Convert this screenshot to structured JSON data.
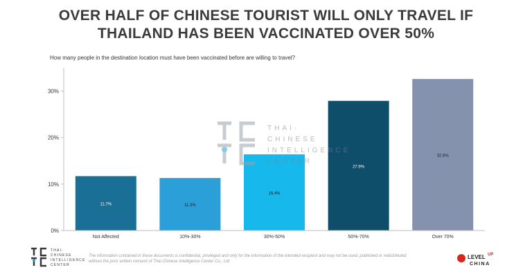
{
  "title_line1": "OVER HALF OF CHINESE TOURIST WILL ONLY TRAVEL IF",
  "title_line2": "THAILAND HAS BEEN VACCINATED OVER 50%",
  "subtitle": "How many people in the destination location must have been vaccinated before are willing to travel?",
  "chart_data": {
    "type": "bar",
    "categories": [
      "Not Affected",
      "10%-30%",
      "30%-50%",
      "50%-70%",
      "Over 70%"
    ],
    "values": [
      11.7,
      11.3,
      16.4,
      27.9,
      32.6
    ],
    "data_labels": [
      "11.7%",
      "11.3%",
      "16.4%",
      "27.9%",
      "32.6%"
    ],
    "bar_colors": [
      "#1a6f97",
      "#2a9fd8",
      "#17b8ec",
      "#0e4e6b",
      "#8592ad"
    ],
    "y_ticks": [
      "0%",
      "10%",
      "20%",
      "30%"
    ],
    "y_tick_values": [
      0,
      10,
      20,
      30
    ],
    "ylim": [
      0,
      35
    ],
    "grid": false
  },
  "watermark": {
    "line1": "THAI-",
    "line2": "CHINESE",
    "line3": "INTELLIGENCE",
    "line4": "CENTER"
  },
  "footer": {
    "logo_line1": "THAI-",
    "logo_line2": "CHINESE",
    "logo_line3": "INTELLIGENCE",
    "logo_line4": "CENTER",
    "disclaimer_line1": "The information contained in these documents is confidential, privileged and only for the information of the intended recipient and may not be used, published or redistributed",
    "disclaimer_line2": "without the prior written consent of Thai-Chinese Intelligence Center Co., Ltd",
    "levelup_level": "LEVEL",
    "levelup_up": "UP",
    "levelup_china": "CHINA"
  }
}
